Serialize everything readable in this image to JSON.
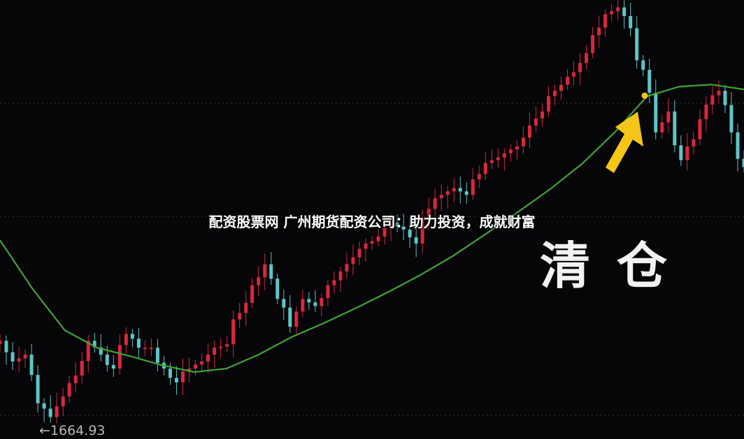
{
  "title": "配资股票网 广州期货配资公司：助力投资，成就财富",
  "chart_data": {
    "type": "candlestick",
    "title": "",
    "xlabel": "",
    "ylabel": "",
    "ylim": [
      1600,
      3480
    ],
    "grid": "dotted horizontal",
    "close": [
      1997,
      1907,
      1937,
      1725,
      1665,
      1755,
      1846,
      1997,
      1937,
      1876,
      2027,
      1967,
      1967,
      1876,
      1816,
      1876,
      1907,
      1967,
      1982,
      2118,
      2239,
      2330,
      2179,
      2058,
      2179,
      2148,
      2239,
      2299,
      2360,
      2420,
      2451,
      2511,
      2481,
      2420,
      2571,
      2632,
      2662,
      2632,
      2723,
      2783,
      2813,
      2843,
      2934,
      2995,
      3085,
      3146,
      3206,
      3327,
      3418,
      3448,
      3357,
      3176,
      2904,
      2995,
      2783,
      2874,
      3025,
      3085,
      2904,
      2753
    ],
    "moving_average": [
      2435,
      2224,
      2043,
      1967,
      1931,
      1891,
      1861,
      1876,
      1937,
      2012,
      2073,
      2139,
      2209,
      2284,
      2366,
      2460,
      2556,
      2656,
      2768,
      2904,
      3061,
      3103,
      3112,
      3091
    ],
    "low_label": "←1664.93",
    "annotation": "清仓",
    "colors": {
      "up": "#d8283c",
      "down": "#5cc6c6",
      "ma": "#3fa535",
      "marker": "#f5c518",
      "background": "#060508"
    }
  }
}
